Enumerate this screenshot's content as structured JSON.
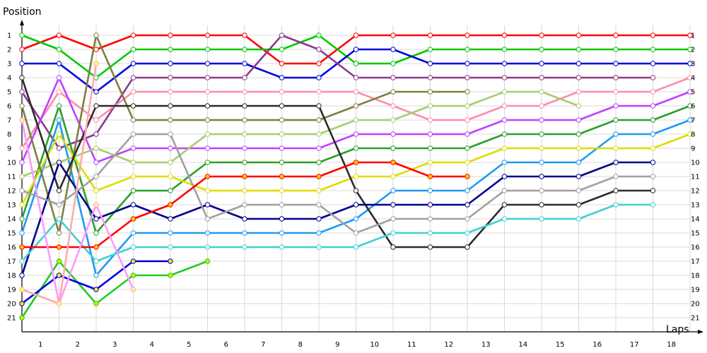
{
  "chart_data": {
    "type": "line",
    "ylabel": "Position",
    "xlabel": "Laps",
    "ylim": [
      1,
      21
    ],
    "y_inverted": true,
    "x_ticks": [
      "1",
      "2",
      "3",
      "4",
      "5",
      "6",
      "7",
      "8",
      "9",
      "10",
      "11",
      "12",
      "13",
      "14",
      "15",
      "16",
      "17",
      "18"
    ],
    "y_ticks": [
      "1",
      "2",
      "3",
      "4",
      "5",
      "6",
      "7",
      "8",
      "9",
      "10",
      "11",
      "12",
      "13",
      "14",
      "15",
      "16",
      "17",
      "18",
      "19",
      "20",
      "21"
    ],
    "grid": true,
    "legend": "none",
    "series": [
      {
        "color": "#ff0000",
        "fill": "#ffffff",
        "values": [
          2,
          1,
          2,
          1,
          1,
          1,
          1,
          3,
          3,
          1,
          1,
          1,
          1,
          1,
          1,
          1,
          1,
          1,
          1
        ]
      },
      {
        "color": "#00c800",
        "fill": "#ffffff",
        "values": [
          1,
          2,
          4,
          2,
          2,
          2,
          2,
          2,
          1,
          3,
          3,
          2,
          2,
          2,
          2,
          2,
          2,
          2,
          2
        ]
      },
      {
        "color": "#0000dc",
        "fill": "#ffffff",
        "values": [
          3,
          3,
          5,
          3,
          3,
          3,
          3,
          4,
          4,
          2,
          2,
          3,
          3,
          3,
          3,
          3,
          3,
          3,
          3
        ]
      },
      {
        "color": "#8b3a8b",
        "fill": "#ffffff",
        "values": [
          5,
          9,
          8,
          4,
          4,
          4,
          4,
          1,
          2,
          4,
          4,
          4,
          4,
          4,
          4,
          4,
          4,
          4
        ]
      },
      {
        "color": "#ff8caa",
        "fill": "#ffffff",
        "values": [
          9,
          5,
          7,
          5,
          5,
          5,
          5,
          5,
          5,
          5,
          6,
          7,
          7,
          6,
          6,
          5,
          5,
          5,
          4
        ]
      },
      {
        "color": "#c040ff",
        "fill": "#ffffff",
        "values": [
          10,
          4,
          10,
          9,
          9,
          9,
          9,
          9,
          9,
          8,
          8,
          8,
          8,
          7,
          7,
          7,
          6,
          6,
          5
        ]
      },
      {
        "color": "#2aa02a",
        "fill": "#ffffff",
        "values": [
          14,
          6,
          15,
          12,
          12,
          10,
          10,
          10,
          10,
          9,
          9,
          9,
          9,
          8,
          8,
          8,
          7,
          7,
          6
        ]
      },
      {
        "color": "#1e9bef",
        "fill": "#ffffff",
        "values": [
          15,
          7,
          18,
          15,
          15,
          15,
          15,
          15,
          15,
          14,
          12,
          12,
          12,
          10,
          10,
          10,
          8,
          8,
          7
        ]
      },
      {
        "color": "#dddd00",
        "fill": "#ffffff",
        "values": [
          13,
          8,
          12,
          11,
          11,
          12,
          12,
          12,
          12,
          11,
          11,
          10,
          10,
          9,
          9,
          9,
          9,
          9,
          8
        ]
      },
      {
        "color": "#a8cc70",
        "fill": "#ffffff",
        "values": [
          11,
          10,
          9,
          10,
          10,
          8,
          8,
          8,
          8,
          7,
          7,
          6,
          6,
          5,
          5,
          6
        ]
      },
      {
        "color": "#7f7f3f",
        "fill": "#ffffff",
        "values": [
          6,
          15,
          1,
          7,
          7,
          7,
          7,
          7,
          7,
          6,
          5,
          5,
          5
        ]
      },
      {
        "color": "#2b2b2b",
        "fill": "#ffffff",
        "values": [
          4,
          12,
          6,
          6,
          6,
          6,
          6,
          6,
          6,
          12,
          16,
          16,
          16,
          13,
          13,
          13,
          12,
          12
        ]
      },
      {
        "color": "#00008b",
        "fill": "#ffffff",
        "values": [
          18,
          10,
          14,
          13,
          14,
          13,
          14,
          14,
          14,
          13,
          13,
          13,
          13,
          11,
          11,
          11,
          10,
          10
        ]
      },
      {
        "color": "#a0a0a0",
        "fill": "#ffffff",
        "values": [
          12,
          13,
          11,
          8,
          8,
          14,
          13,
          13,
          13,
          15,
          14,
          14,
          14,
          12,
          12,
          12,
          11,
          11
        ]
      },
      {
        "color": "#40d0d0",
        "fill": "#ffffff",
        "values": [
          17,
          14,
          17,
          16,
          16,
          16,
          16,
          16,
          16,
          16,
          15,
          15,
          15,
          14,
          14,
          14,
          13,
          13
        ]
      },
      {
        "color": "#ff0000",
        "fill": "#ffcc00",
        "values": [
          16,
          16,
          16,
          14,
          13,
          11,
          11,
          11,
          11,
          10,
          10,
          11,
          11
        ]
      },
      {
        "color": "#22cc22",
        "fill": "#ccee00",
        "values": [
          21,
          17,
          20,
          18,
          18,
          17
        ]
      },
      {
        "color": "#0000dc",
        "fill": "#eeee00",
        "values": [
          20,
          18,
          19,
          17,
          17
        ]
      },
      {
        "color": "#ff99ff",
        "fill": "#ffff66",
        "values": [
          7,
          20,
          13,
          19
        ]
      },
      {
        "color": "#ffaaaa",
        "fill": "#ffff66",
        "values": [
          19,
          20,
          3
        ]
      }
    ]
  }
}
